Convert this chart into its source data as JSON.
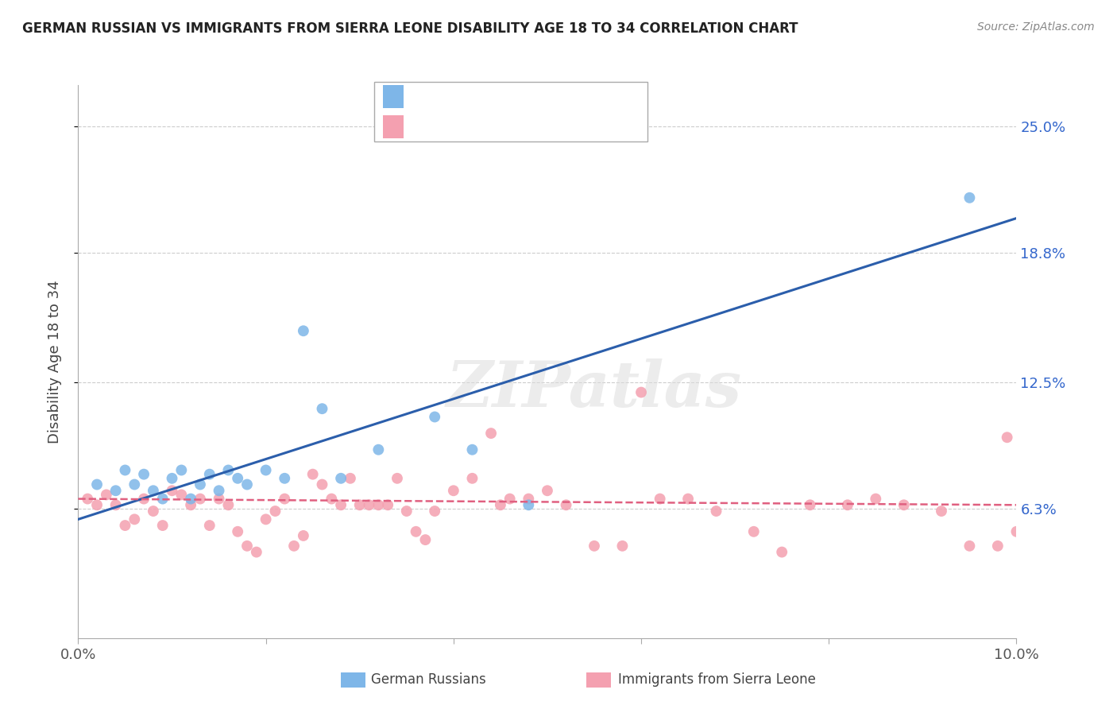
{
  "title": "GERMAN RUSSIAN VS IMMIGRANTS FROM SIERRA LEONE DISABILITY AGE 18 TO 34 CORRELATION CHART",
  "source_text": "Source: ZipAtlas.com",
  "ylabel": "Disability Age 18 to 34",
  "xlim": [
    0.0,
    0.1
  ],
  "ylim": [
    0.0,
    0.27
  ],
  "yticks": [
    0.063,
    0.125,
    0.188,
    0.25
  ],
  "ytick_labels": [
    "6.3%",
    "12.5%",
    "18.8%",
    "25.0%"
  ],
  "xticks": [
    0.0,
    0.02,
    0.04,
    0.06,
    0.08,
    0.1
  ],
  "xtick_labels": [
    "0.0%",
    "",
    "",
    "",
    "",
    "10.0%"
  ],
  "blue_color": "#7EB6E8",
  "pink_color": "#F4A0B0",
  "blue_line_color": "#2B5EAB",
  "pink_line_color": "#E06080",
  "legend_label_blue": "German Russians",
  "legend_label_pink": "Immigrants from Sierra Leone",
  "watermark": "ZIPatlas",
  "blue_x": [
    0.002,
    0.004,
    0.005,
    0.006,
    0.007,
    0.008,
    0.009,
    0.01,
    0.011,
    0.012,
    0.013,
    0.014,
    0.015,
    0.016,
    0.017,
    0.018,
    0.02,
    0.022,
    0.024,
    0.026,
    0.028,
    0.032,
    0.038,
    0.042,
    0.048,
    0.095
  ],
  "blue_y": [
    0.075,
    0.072,
    0.082,
    0.075,
    0.08,
    0.072,
    0.068,
    0.078,
    0.082,
    0.068,
    0.075,
    0.08,
    0.072,
    0.082,
    0.078,
    0.075,
    0.082,
    0.078,
    0.15,
    0.112,
    0.078,
    0.092,
    0.108,
    0.092,
    0.065,
    0.215
  ],
  "pink_x": [
    0.001,
    0.002,
    0.003,
    0.004,
    0.005,
    0.006,
    0.007,
    0.008,
    0.009,
    0.01,
    0.011,
    0.012,
    0.013,
    0.014,
    0.015,
    0.016,
    0.017,
    0.018,
    0.019,
    0.02,
    0.021,
    0.022,
    0.023,
    0.024,
    0.025,
    0.026,
    0.027,
    0.028,
    0.029,
    0.03,
    0.031,
    0.032,
    0.033,
    0.034,
    0.035,
    0.036,
    0.037,
    0.038,
    0.04,
    0.042,
    0.044,
    0.045,
    0.046,
    0.048,
    0.05,
    0.052,
    0.055,
    0.058,
    0.06,
    0.062,
    0.065,
    0.068,
    0.072,
    0.075,
    0.078,
    0.082,
    0.085,
    0.088,
    0.092,
    0.095,
    0.098,
    0.099,
    0.1
  ],
  "pink_y": [
    0.068,
    0.065,
    0.07,
    0.065,
    0.055,
    0.058,
    0.068,
    0.062,
    0.055,
    0.072,
    0.07,
    0.065,
    0.068,
    0.055,
    0.068,
    0.065,
    0.052,
    0.045,
    0.042,
    0.058,
    0.062,
    0.068,
    0.045,
    0.05,
    0.08,
    0.075,
    0.068,
    0.065,
    0.078,
    0.065,
    0.065,
    0.065,
    0.065,
    0.078,
    0.062,
    0.052,
    0.048,
    0.062,
    0.072,
    0.078,
    0.1,
    0.065,
    0.068,
    0.068,
    0.072,
    0.065,
    0.045,
    0.045,
    0.12,
    0.068,
    0.068,
    0.062,
    0.052,
    0.042,
    0.065,
    0.065,
    0.068,
    0.065,
    0.062,
    0.045,
    0.045,
    0.098,
    0.052
  ],
  "blue_trendline_x": [
    0.0,
    0.1
  ],
  "blue_trendline_y": [
    0.058,
    0.205
  ],
  "pink_trendline_x": [
    0.0,
    0.1
  ],
  "pink_trendline_y": [
    0.068,
    0.065
  ]
}
